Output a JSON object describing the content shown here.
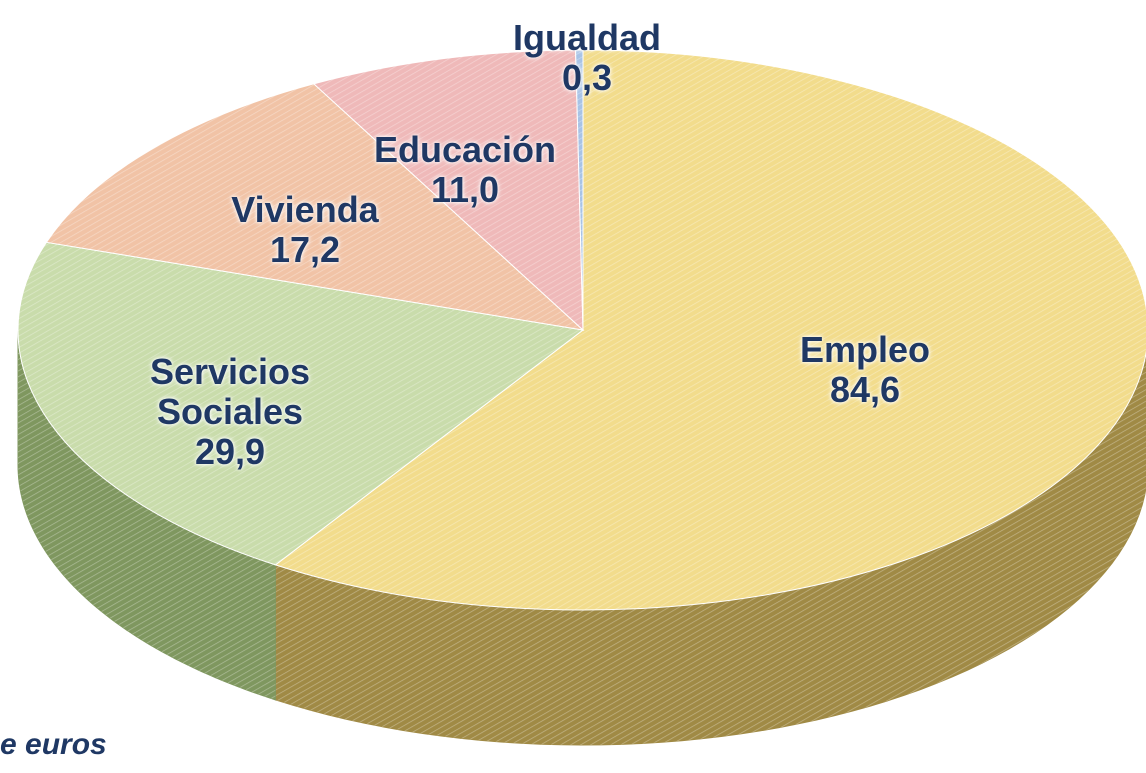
{
  "chart_data": {
    "type": "pie3d",
    "categories": [
      "Empleo",
      "Servicios Sociales",
      "Vivienda",
      "Educación",
      "Igualdad"
    ],
    "values": [
      84.6,
      29.9,
      17.2,
      11.0,
      0.3
    ],
    "value_labels": [
      "84,6",
      "29,9",
      "17,2",
      "11,0",
      "0,3"
    ],
    "colors": [
      "#f2dc8c",
      "#c9dcab",
      "#f1c3a6",
      "#efb9b9",
      "#a8c3e6"
    ],
    "side_colors": [
      "#a08a45",
      "#7f975f",
      "#b08366",
      "#a97474",
      "#6f88aa"
    ],
    "note": "e euros"
  }
}
